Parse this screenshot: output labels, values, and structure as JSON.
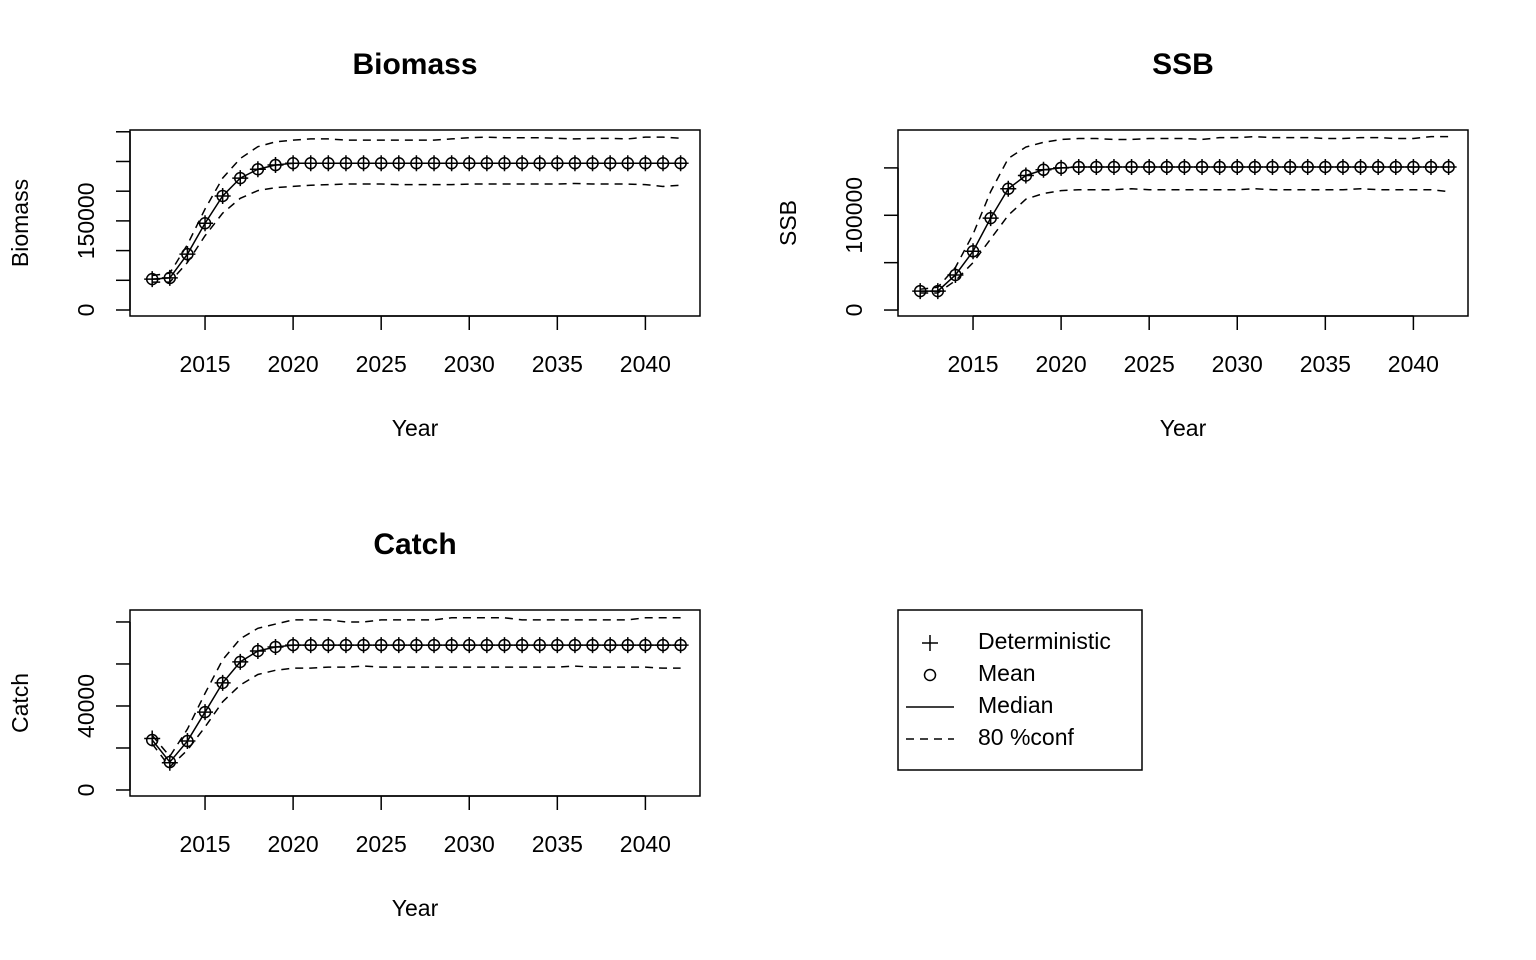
{
  "chart_data": [
    {
      "type": "line",
      "title": "Biomass",
      "xlabel": "Year",
      "ylabel": "Biomass",
      "x": [
        2012,
        2013,
        2014,
        2015,
        2016,
        2017,
        2018,
        2019,
        2020,
        2021,
        2022,
        2023,
        2024,
        2025,
        2026,
        2027,
        2028,
        2029,
        2030,
        2031,
        2032,
        2033,
        2034,
        2035,
        2036,
        2037,
        2038,
        2039,
        2040,
        2041,
        2042
      ],
      "xlim": [
        2010.74,
        2043.1
      ],
      "xticks": [
        2015,
        2020,
        2025,
        2030,
        2035,
        2040
      ],
      "ylim": [
        -10100,
        303000
      ],
      "yticks": [
        0,
        150000
      ],
      "yminor_ticks": [
        50000,
        100000,
        200000,
        250000,
        300000
      ],
      "series": [
        {
          "name": "Deterministic",
          "color": "#000000",
          "marker": "plus",
          "values": [
            52000,
            54000,
            94000,
            146000,
            192000,
            222000,
            237000,
            244000,
            247000,
            247000,
            247000,
            247000,
            247000,
            247000,
            247000,
            247000,
            247000,
            247000,
            247000,
            247000,
            247000,
            247000,
            247000,
            247000,
            247000,
            247000,
            247000,
            247000,
            247000,
            247000,
            247000
          ]
        },
        {
          "name": "Mean",
          "color": "#000000",
          "marker": "circle",
          "values": [
            52000,
            54000,
            94000,
            146000,
            192000,
            222000,
            237000,
            244000,
            247000,
            247000,
            247000,
            247000,
            247000,
            247000,
            247000,
            247000,
            247000,
            247000,
            247000,
            247000,
            247000,
            247000,
            247000,
            247000,
            247000,
            247000,
            247000,
            247000,
            247000,
            247000,
            247000
          ]
        },
        {
          "name": "Median",
          "color": "#000000",
          "line": "solid",
          "values": [
            52000,
            54000,
            94000,
            146000,
            192000,
            222000,
            237000,
            244000,
            247000,
            247000,
            247000,
            247000,
            247000,
            247000,
            247000,
            247000,
            247000,
            247000,
            247000,
            247000,
            247000,
            247000,
            247000,
            247000,
            247000,
            247000,
            247000,
            247000,
            247000,
            247000,
            247000
          ]
        },
        {
          "name": "80 %conf",
          "color": "#000000",
          "line": "dashed",
          "upper": [
            58000,
            62000,
            110000,
            170000,
            222000,
            255000,
            275000,
            283000,
            286000,
            288000,
            288000,
            286000,
            286000,
            286000,
            286000,
            286000,
            286000,
            288000,
            290000,
            291000,
            290000,
            290000,
            290000,
            289000,
            288000,
            289000,
            289000,
            288000,
            291000,
            291000,
            289000
          ],
          "lower": [
            47000,
            47000,
            80000,
            125000,
            163000,
            188000,
            201000,
            206000,
            208000,
            210000,
            211000,
            212000,
            212000,
            212000,
            211000,
            211000,
            211000,
            211000,
            212000,
            212000,
            212000,
            212000,
            212000,
            212000,
            213000,
            212000,
            212000,
            212000,
            211000,
            208000,
            210000
          ]
        }
      ]
    },
    {
      "type": "line",
      "title": "SSB",
      "xlabel": "Year",
      "ylabel": "SSB",
      "x": [
        2012,
        2013,
        2014,
        2015,
        2016,
        2017,
        2018,
        2019,
        2020,
        2021,
        2022,
        2023,
        2024,
        2025,
        2026,
        2027,
        2028,
        2029,
        2030,
        2031,
        2032,
        2033,
        2034,
        2035,
        2036,
        2037,
        2038,
        2039,
        2040,
        2041,
        2042
      ],
      "xlim": [
        2010.74,
        2043.1
      ],
      "xticks": [
        2015,
        2020,
        2025,
        2030,
        2035,
        2040
      ],
      "ylim": [
        -6300,
        190000
      ],
      "yticks": [
        0,
        100000
      ],
      "yminor_ticks": [
        50000,
        150000
      ],
      "series": [
        {
          "name": "Deterministic",
          "color": "#000000",
          "marker": "plus",
          "values": [
            20000,
            20000,
            37000,
            62000,
            97000,
            128000,
            142000,
            148000,
            150000,
            151000,
            151000,
            151000,
            151000,
            151000,
            151000,
            151000,
            151000,
            151000,
            151000,
            151000,
            151000,
            151000,
            151000,
            151000,
            151000,
            151000,
            151000,
            151000,
            151000,
            151000,
            151000
          ]
        },
        {
          "name": "Mean",
          "color": "#000000",
          "marker": "circle",
          "values": [
            20000,
            20000,
            37000,
            62000,
            97000,
            128000,
            142000,
            148000,
            150000,
            151000,
            151000,
            151000,
            151000,
            151000,
            151000,
            151000,
            151000,
            151000,
            151000,
            151000,
            151000,
            151000,
            151000,
            151000,
            151000,
            151000,
            151000,
            151000,
            151000,
            151000,
            151000
          ]
        },
        {
          "name": "Median",
          "color": "#000000",
          "line": "solid",
          "values": [
            20000,
            20000,
            37000,
            62000,
            97000,
            128000,
            142000,
            148000,
            150000,
            151000,
            151000,
            151000,
            151000,
            151000,
            151000,
            151000,
            151000,
            151000,
            151000,
            151000,
            151000,
            151000,
            151000,
            151000,
            151000,
            151000,
            151000,
            151000,
            151000,
            151000,
            151000
          ]
        },
        {
          "name": "80 %conf",
          "color": "#000000",
          "line": "dashed",
          "upper": [
            22000,
            24000,
            45000,
            80000,
            125000,
            160000,
            172000,
            177000,
            180000,
            181000,
            181000,
            180000,
            180000,
            181000,
            181000,
            181000,
            180000,
            182000,
            182000,
            183000,
            182000,
            182000,
            182000,
            181000,
            181000,
            182000,
            182000,
            181000,
            181000,
            183000,
            183000
          ],
          "lower": [
            18000,
            18000,
            31000,
            50000,
            75000,
            100000,
            117000,
            123000,
            126000,
            127000,
            127000,
            127000,
            128000,
            127000,
            127000,
            127000,
            127000,
            127000,
            127000,
            128000,
            127000,
            127000,
            127000,
            127000,
            127000,
            128000,
            127000,
            127000,
            127000,
            127000,
            125000
          ]
        }
      ]
    },
    {
      "type": "line",
      "title": "Catch",
      "xlabel": "Year",
      "ylabel": "Catch",
      "x": [
        2012,
        2013,
        2014,
        2015,
        2016,
        2017,
        2018,
        2019,
        2020,
        2021,
        2022,
        2023,
        2024,
        2025,
        2026,
        2027,
        2028,
        2029,
        2030,
        2031,
        2032,
        2033,
        2034,
        2035,
        2036,
        2037,
        2038,
        2039,
        2040,
        2041,
        2042
      ],
      "xlim": [
        2010.74,
        2043.1
      ],
      "xticks": [
        2015,
        2020,
        2025,
        2030,
        2035,
        2040
      ],
      "ylim": [
        -2860,
        85700
      ],
      "yticks": [
        0,
        40000
      ],
      "yminor_ticks": [
        20000,
        60000,
        80000
      ],
      "series": [
        {
          "name": "Deterministic",
          "color": "#000000",
          "marker": "plus",
          "values": [
            24500,
            13000,
            23300,
            37100,
            51000,
            61000,
            66200,
            68100,
            69000,
            69000,
            69000,
            69000,
            69000,
            69000,
            69000,
            69000,
            69000,
            69000,
            69000,
            69000,
            69000,
            69000,
            69000,
            69000,
            69000,
            69000,
            69000,
            69000,
            69000,
            69000,
            69000
          ]
        },
        {
          "name": "Mean",
          "color": "#000000",
          "marker": "circle",
          "values": [
            23800,
            13300,
            23300,
            37100,
            51000,
            61000,
            66200,
            68100,
            69000,
            69000,
            69000,
            69000,
            69000,
            69000,
            69000,
            69000,
            69000,
            69000,
            69000,
            69000,
            69000,
            69000,
            69000,
            69000,
            69000,
            69000,
            69000,
            69000,
            69000,
            69000,
            69000
          ]
        },
        {
          "name": "Median",
          "color": "#000000",
          "line": "solid",
          "values": [
            23800,
            13300,
            23300,
            37100,
            51000,
            61000,
            66200,
            68100,
            69000,
            69000,
            69000,
            69000,
            69000,
            69000,
            69000,
            69000,
            69000,
            69000,
            69000,
            69000,
            69000,
            69000,
            69000,
            69000,
            69000,
            69000,
            69000,
            69000,
            69000,
            69000,
            69000
          ]
        },
        {
          "name": "80 %conf",
          "color": "#000000",
          "line": "dashed",
          "upper": [
            26000,
            16000,
            29000,
            46000,
            62000,
            72000,
            77000,
            79000,
            81000,
            81000,
            81000,
            80000,
            80000,
            81000,
            81000,
            81000,
            81000,
            82000,
            82000,
            82000,
            82000,
            81000,
            81000,
            81000,
            81000,
            81000,
            81000,
            81000,
            82000,
            82000,
            82000
          ],
          "lower": [
            22000,
            11000,
            19000,
            30000,
            42000,
            50000,
            55000,
            57000,
            58000,
            58000,
            58500,
            58500,
            59000,
            58500,
            58500,
            58500,
            58500,
            58500,
            58500,
            58500,
            58500,
            58500,
            58500,
            58500,
            59000,
            58500,
            58500,
            58500,
            58500,
            58000,
            58000
          ]
        }
      ]
    }
  ]
}
